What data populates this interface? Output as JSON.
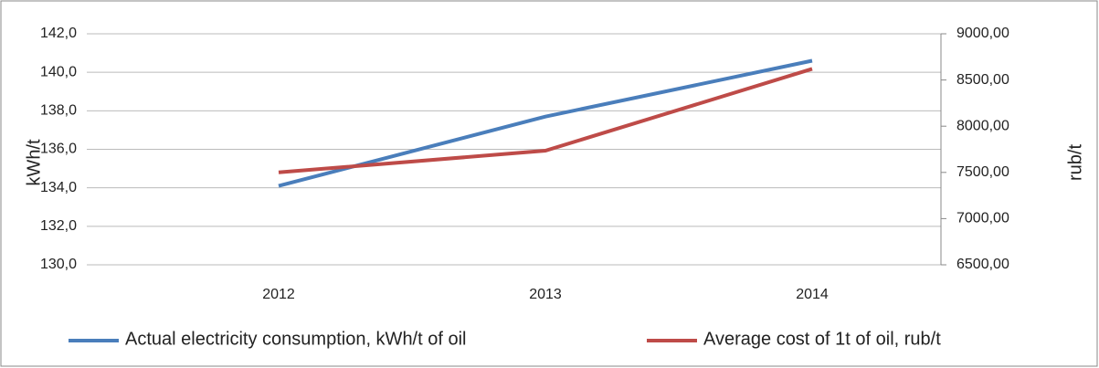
{
  "chart_data": {
    "type": "line",
    "categories": [
      "2012",
      "2013",
      "2014"
    ],
    "series": [
      {
        "name": "Actual electricity consumption, kWh/t of oil",
        "color": "#4a7ebb",
        "values": [
          134.1,
          137.7,
          140.6
        ]
      },
      {
        "name": "Average cost of 1t of oil, rub/t",
        "color": "#be4b48",
        "values": [
          7500,
          7735,
          8620
        ],
        "axis": "y2"
      }
    ],
    "ylabel": "kWh/t",
    "y2label": "rub/t",
    "ylim": [
      130,
      142
    ],
    "yticks": [
      {
        "value": 130,
        "label": "130,0"
      },
      {
        "value": 132,
        "label": "132,0"
      },
      {
        "value": 134,
        "label": "134,0"
      },
      {
        "value": 136,
        "label": "136,0"
      },
      {
        "value": 138,
        "label": "138,0"
      },
      {
        "value": 140,
        "label": "140,0"
      },
      {
        "value": 142,
        "label": "142,0"
      }
    ],
    "y2lim": [
      6500,
      9000
    ],
    "y2ticks": [
      {
        "value": 6500,
        "label": "6500,00"
      },
      {
        "value": 7000,
        "label": "7000,00"
      },
      {
        "value": 7500,
        "label": "7500,00"
      },
      {
        "value": 8000,
        "label": "8000,00"
      },
      {
        "value": 8500,
        "label": "8500,00"
      },
      {
        "value": 9000,
        "label": "9000,00"
      }
    ],
    "grid": true,
    "legend": "bottom"
  }
}
